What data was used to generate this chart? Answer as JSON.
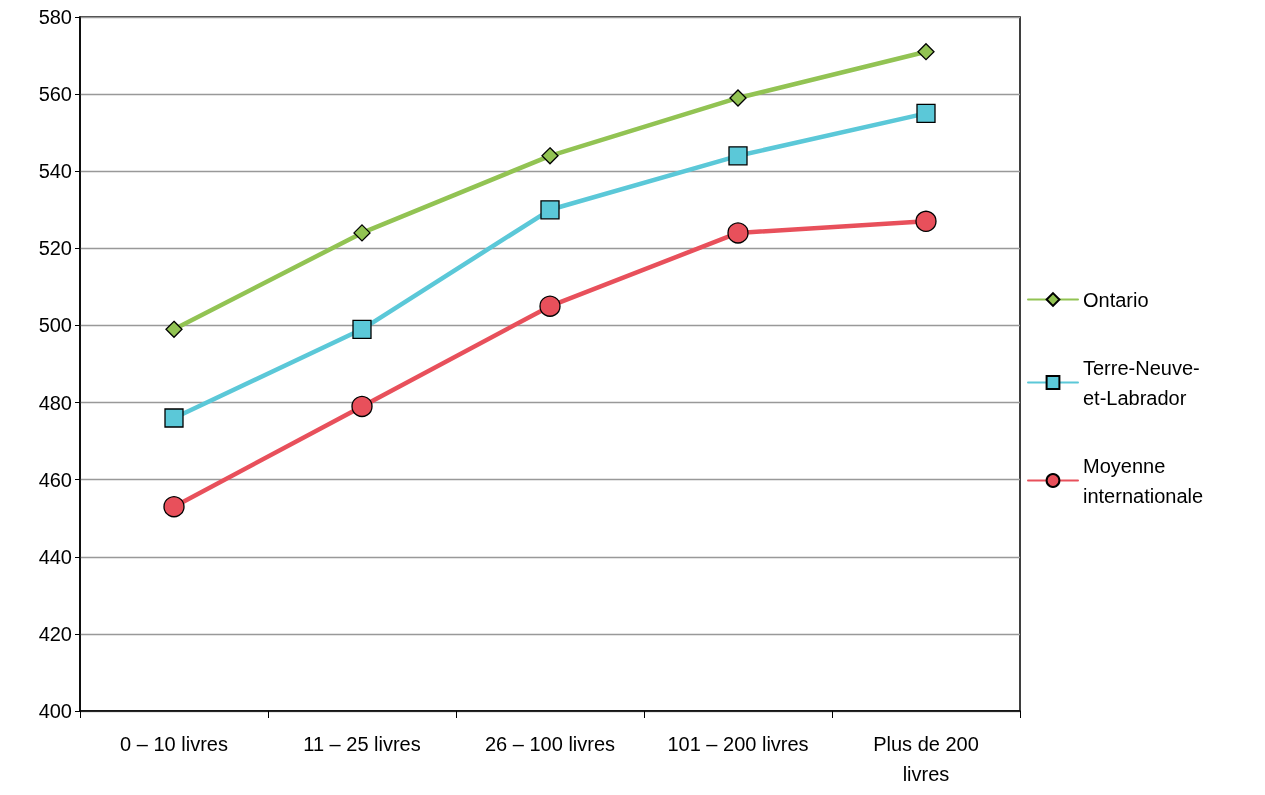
{
  "chart_data": {
    "type": "line",
    "categories": [
      "0 – 10 livres",
      "11 – 25 livres",
      "26 – 100 livres",
      "101 – 200 livres",
      "Plus de 200 livres"
    ],
    "series": [
      {
        "name": "Ontario",
        "color": "#92c353",
        "marker": "diamond",
        "values": [
          499,
          524,
          544,
          559,
          571
        ]
      },
      {
        "name": "Terre-Neuve-et-Labrador",
        "color": "#5bc8d8",
        "marker": "square",
        "values": [
          476,
          499,
          530,
          544,
          555
        ]
      },
      {
        "name": "Moyenne internationale",
        "color": "#e8505b",
        "marker": "circle",
        "values": [
          453,
          479,
          505,
          524,
          527
        ]
      }
    ],
    "ylim": [
      400,
      580
    ],
    "yticks": [
      400,
      420,
      440,
      460,
      480,
      500,
      520,
      540,
      560,
      580
    ],
    "grid": "y",
    "legend": "right",
    "line_style": "solid"
  }
}
